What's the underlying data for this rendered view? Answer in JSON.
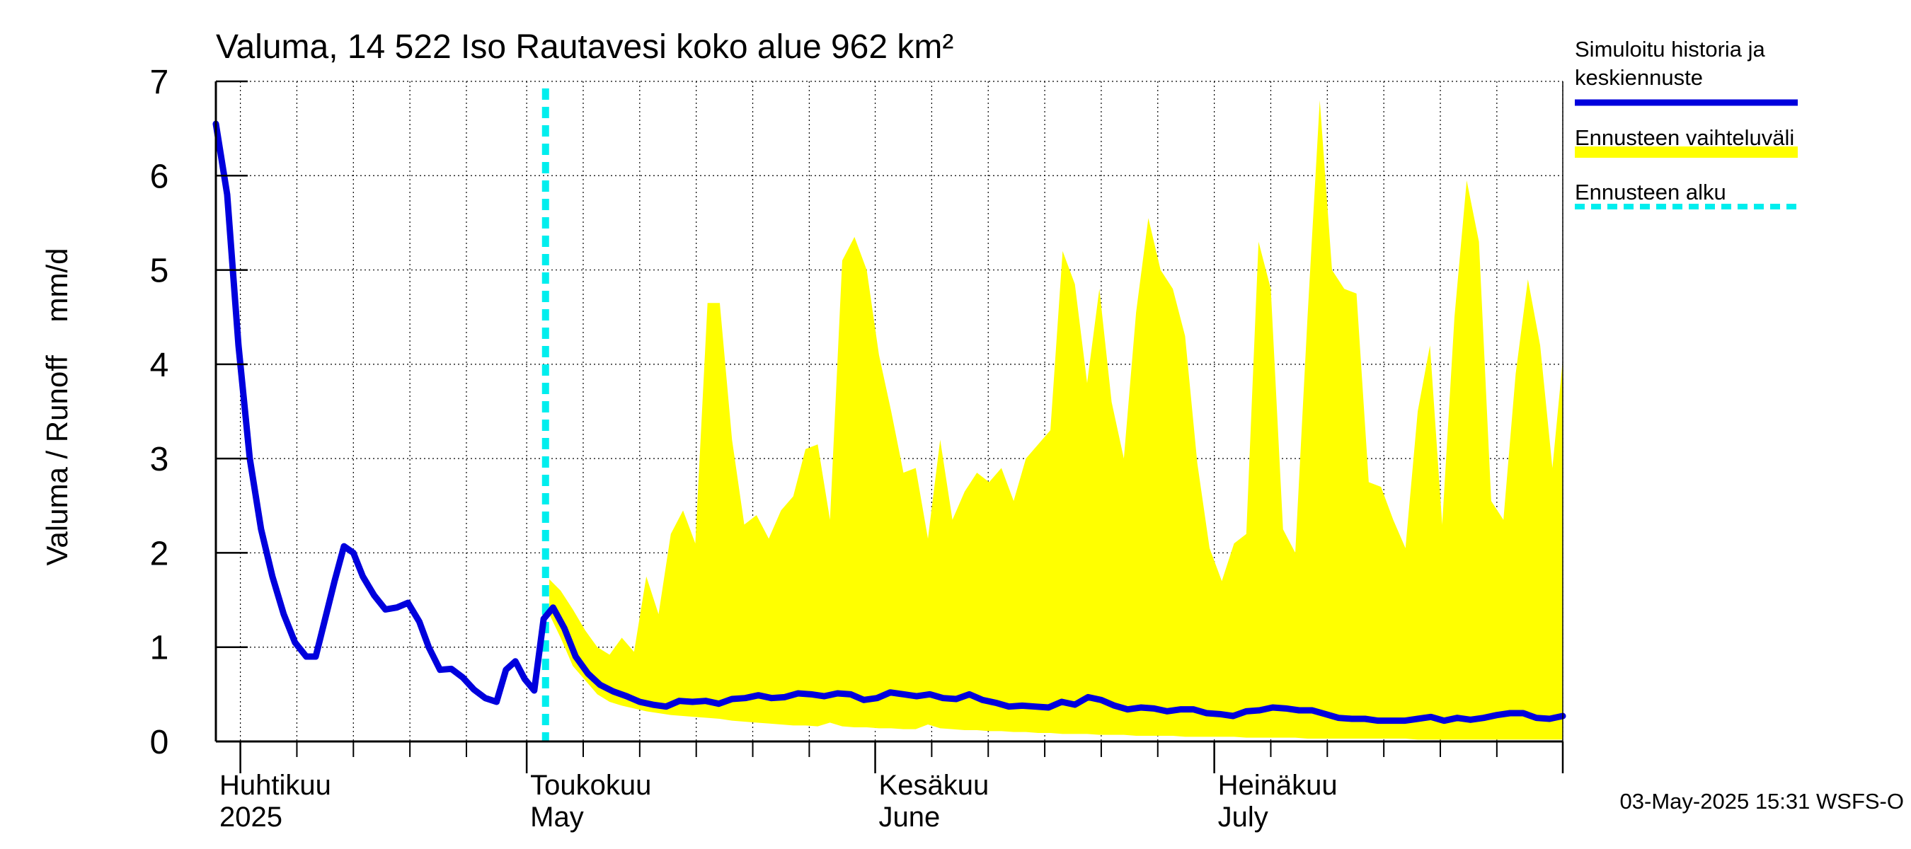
{
  "chart_data": {
    "type": "area+line",
    "title": "Valuma, 14 522 Iso Rautavesi koko alue 962 km²",
    "ylabel": "Valuma / Runoff    mm/d",
    "ylim": [
      0,
      7
    ],
    "yticks": [
      0,
      1,
      2,
      3,
      4,
      5,
      6,
      7
    ],
    "xlim_days": [
      0,
      143
    ],
    "date_start": "2025-03-29",
    "forecast_start_day": 35,
    "month_labels": [
      {
        "fi": "Huhtikuu",
        "en": "2025",
        "day": 0
      },
      {
        "fi": "Toukokuu",
        "en": "May",
        "day": 33
      },
      {
        "fi": "Kesäkuu",
        "en": "June",
        "day": 70
      },
      {
        "fi": "Heinäkuu",
        "en": "July",
        "day": 106
      }
    ],
    "month_ticks_days": [
      2.6,
      33,
      70,
      106,
      143
    ],
    "week_ticks_days": [
      8.6,
      14.6,
      20.6,
      26.6,
      39,
      45,
      51,
      57,
      63,
      76,
      82,
      88,
      94,
      100,
      112,
      118,
      124,
      130,
      136
    ],
    "legend": [
      {
        "label_lines": [
          "Simuloitu historia ja",
          "keskiennuste"
        ],
        "color": "#0000dd",
        "style": "solid"
      },
      {
        "label_lines": [
          "Ennusteen vaihteluväli"
        ],
        "color": "#ffff00",
        "style": "band"
      },
      {
        "label_lines": [
          "Ennusteen alku"
        ],
        "color": "#00eeee",
        "style": "dashed"
      }
    ],
    "footer": "03-May-2025 15:31 WSFS-O",
    "series": [
      {
        "name": "Simuloitu historia ja keskiennuste",
        "color": "#0000dd",
        "points": [
          [
            0,
            6.55
          ],
          [
            1.2,
            5.8
          ],
          [
            2.4,
            4.2
          ],
          [
            3.6,
            3.0
          ],
          [
            4.8,
            2.25
          ],
          [
            6,
            1.75
          ],
          [
            7.2,
            1.35
          ],
          [
            8.4,
            1.05
          ],
          [
            9.6,
            0.9
          ],
          [
            10.6,
            0.9
          ],
          [
            11.6,
            1.3
          ],
          [
            12.6,
            1.7
          ],
          [
            13.6,
            2.07
          ],
          [
            14.6,
            2.0
          ],
          [
            15.6,
            1.75
          ],
          [
            16.8,
            1.55
          ],
          [
            18,
            1.4
          ],
          [
            19.2,
            1.42
          ],
          [
            20.4,
            1.47
          ],
          [
            21.6,
            1.27
          ],
          [
            22.6,
            1.0
          ],
          [
            23.8,
            0.76
          ],
          [
            25,
            0.77
          ],
          [
            26.2,
            0.68
          ],
          [
            27.4,
            0.55
          ],
          [
            28.6,
            0.46
          ],
          [
            29.8,
            0.42
          ],
          [
            30.8,
            0.76
          ],
          [
            31.8,
            0.85
          ],
          [
            32.8,
            0.66
          ],
          [
            33.8,
            0.54
          ],
          [
            34.8,
            1.3
          ],
          [
            35.8,
            1.42
          ],
          [
            37,
            1.2
          ],
          [
            38.2,
            0.9
          ],
          [
            39.5,
            0.72
          ],
          [
            40.8,
            0.6
          ],
          [
            42.2,
            0.53
          ],
          [
            43.6,
            0.48
          ],
          [
            45,
            0.42
          ],
          [
            46.4,
            0.39
          ],
          [
            47.8,
            0.37
          ],
          [
            49.2,
            0.43
          ],
          [
            50.6,
            0.42
          ],
          [
            52,
            0.43
          ],
          [
            53.4,
            0.4
          ],
          [
            54.8,
            0.45
          ],
          [
            56.2,
            0.46
          ],
          [
            57.6,
            0.49
          ],
          [
            59,
            0.46
          ],
          [
            60.4,
            0.47
          ],
          [
            61.8,
            0.51
          ],
          [
            63.2,
            0.5
          ],
          [
            64.6,
            0.48
          ],
          [
            66,
            0.51
          ],
          [
            67.4,
            0.5
          ],
          [
            68.8,
            0.44
          ],
          [
            70.2,
            0.46
          ],
          [
            71.6,
            0.52
          ],
          [
            73,
            0.5
          ],
          [
            74.4,
            0.48
          ],
          [
            75.8,
            0.5
          ],
          [
            77.2,
            0.46
          ],
          [
            78.6,
            0.45
          ],
          [
            80,
            0.5
          ],
          [
            81.4,
            0.44
          ],
          [
            82.8,
            0.41
          ],
          [
            84.2,
            0.37
          ],
          [
            85.6,
            0.38
          ],
          [
            87,
            0.37
          ],
          [
            88.4,
            0.36
          ],
          [
            89.8,
            0.42
          ],
          [
            91.2,
            0.39
          ],
          [
            92.6,
            0.47
          ],
          [
            94,
            0.44
          ],
          [
            95.4,
            0.38
          ],
          [
            96.8,
            0.34
          ],
          [
            98.2,
            0.36
          ],
          [
            99.6,
            0.35
          ],
          [
            101,
            0.32
          ],
          [
            102.4,
            0.34
          ],
          [
            103.8,
            0.34
          ],
          [
            105.2,
            0.3
          ],
          [
            106.6,
            0.29
          ],
          [
            108,
            0.27
          ],
          [
            109.4,
            0.32
          ],
          [
            110.8,
            0.33
          ],
          [
            112.2,
            0.36
          ],
          [
            113.6,
            0.35
          ],
          [
            115,
            0.33
          ],
          [
            116.4,
            0.33
          ],
          [
            117.8,
            0.29
          ],
          [
            119.2,
            0.25
          ],
          [
            120.6,
            0.24
          ],
          [
            122,
            0.24
          ],
          [
            123.4,
            0.22
          ],
          [
            124.8,
            0.22
          ],
          [
            126.2,
            0.22
          ],
          [
            127.6,
            0.24
          ],
          [
            129,
            0.26
          ],
          [
            130.4,
            0.22
          ],
          [
            131.8,
            0.25
          ],
          [
            133.2,
            0.23
          ],
          [
            134.6,
            0.25
          ],
          [
            136,
            0.28
          ],
          [
            137.4,
            0.3
          ],
          [
            138.8,
            0.3
          ],
          [
            140.2,
            0.25
          ],
          [
            141.6,
            0.24
          ],
          [
            143,
            0.27
          ]
        ]
      }
    ],
    "band": {
      "name": "Ennusteen vaihteluväli",
      "color": "#ffff00",
      "x": [
        35.4,
        36.6,
        37.9,
        39.2,
        40.5,
        41.8,
        43.1,
        44.4,
        45.7,
        47,
        48.3,
        49.6,
        50.9,
        52.2,
        53.5,
        54.8,
        56.1,
        57.4,
        58.7,
        60,
        61.3,
        62.6,
        63.9,
        65.2,
        66.5,
        67.8,
        69.1,
        70.4,
        71.7,
        73,
        74.3,
        75.6,
        76.9,
        78.2,
        79.5,
        80.8,
        82.1,
        83.4,
        84.7,
        86,
        87.3,
        88.6,
        89.9,
        91.2,
        92.5,
        93.8,
        95.1,
        96.4,
        97.7,
        99,
        100.3,
        101.6,
        102.9,
        104.2,
        105.5,
        106.8,
        108.1,
        109.4,
        110.7,
        112,
        113.3,
        114.6,
        115.9,
        117.2,
        118.5,
        119.8,
        121.1,
        122.4,
        123.7,
        125,
        126.3,
        127.6,
        128.9,
        130.2,
        131.5,
        132.8,
        134.1,
        135.4,
        136.7,
        138,
        139.3,
        140.6,
        141.9,
        143
      ],
      "upper": [
        1.72,
        1.6,
        1.4,
        1.18,
        1.0,
        0.92,
        1.1,
        0.95,
        1.75,
        1.35,
        2.2,
        2.45,
        2.1,
        4.65,
        4.65,
        3.2,
        2.3,
        2.4,
        2.15,
        2.45,
        2.6,
        3.1,
        3.15,
        2.35,
        5.1,
        5.35,
        5.0,
        4.1,
        3.5,
        2.85,
        2.9,
        2.15,
        3.2,
        2.35,
        2.65,
        2.85,
        2.75,
        2.9,
        2.55,
        3.0,
        3.15,
        3.3,
        5.2,
        4.85,
        3.8,
        4.8,
        3.6,
        3.0,
        4.55,
        5.55,
        5.0,
        4.8,
        4.3,
        2.95,
        2.05,
        1.7,
        2.1,
        2.2,
        5.3,
        4.8,
        2.25,
        2.0,
        4.5,
        6.8,
        5.0,
        4.8,
        4.75,
        2.75,
        2.7,
        2.35,
        2.05,
        3.5,
        4.2,
        2.3,
        4.5,
        5.95,
        5.3,
        2.55,
        2.35,
        3.9,
        4.9,
        4.2,
        2.9,
        4.05
      ],
      "lower": [
        1.35,
        1.1,
        0.8,
        0.65,
        0.5,
        0.42,
        0.38,
        0.35,
        0.32,
        0.3,
        0.28,
        0.27,
        0.26,
        0.25,
        0.24,
        0.22,
        0.21,
        0.2,
        0.19,
        0.18,
        0.17,
        0.17,
        0.16,
        0.2,
        0.16,
        0.15,
        0.15,
        0.14,
        0.14,
        0.13,
        0.13,
        0.18,
        0.14,
        0.13,
        0.12,
        0.12,
        0.11,
        0.11,
        0.1,
        0.1,
        0.09,
        0.09,
        0.08,
        0.08,
        0.08,
        0.07,
        0.07,
        0.07,
        0.06,
        0.06,
        0.06,
        0.06,
        0.05,
        0.05,
        0.05,
        0.05,
        0.05,
        0.04,
        0.04,
        0.04,
        0.04,
        0.04,
        0.03,
        0.03,
        0.03,
        0.03,
        0.03,
        0.03,
        0.03,
        0.03,
        0.03,
        0.02,
        0.02,
        0.02,
        0.02,
        0.02,
        0.02,
        0.02,
        0.02,
        0.02,
        0.02,
        0.02,
        0.02,
        0.02
      ]
    }
  }
}
